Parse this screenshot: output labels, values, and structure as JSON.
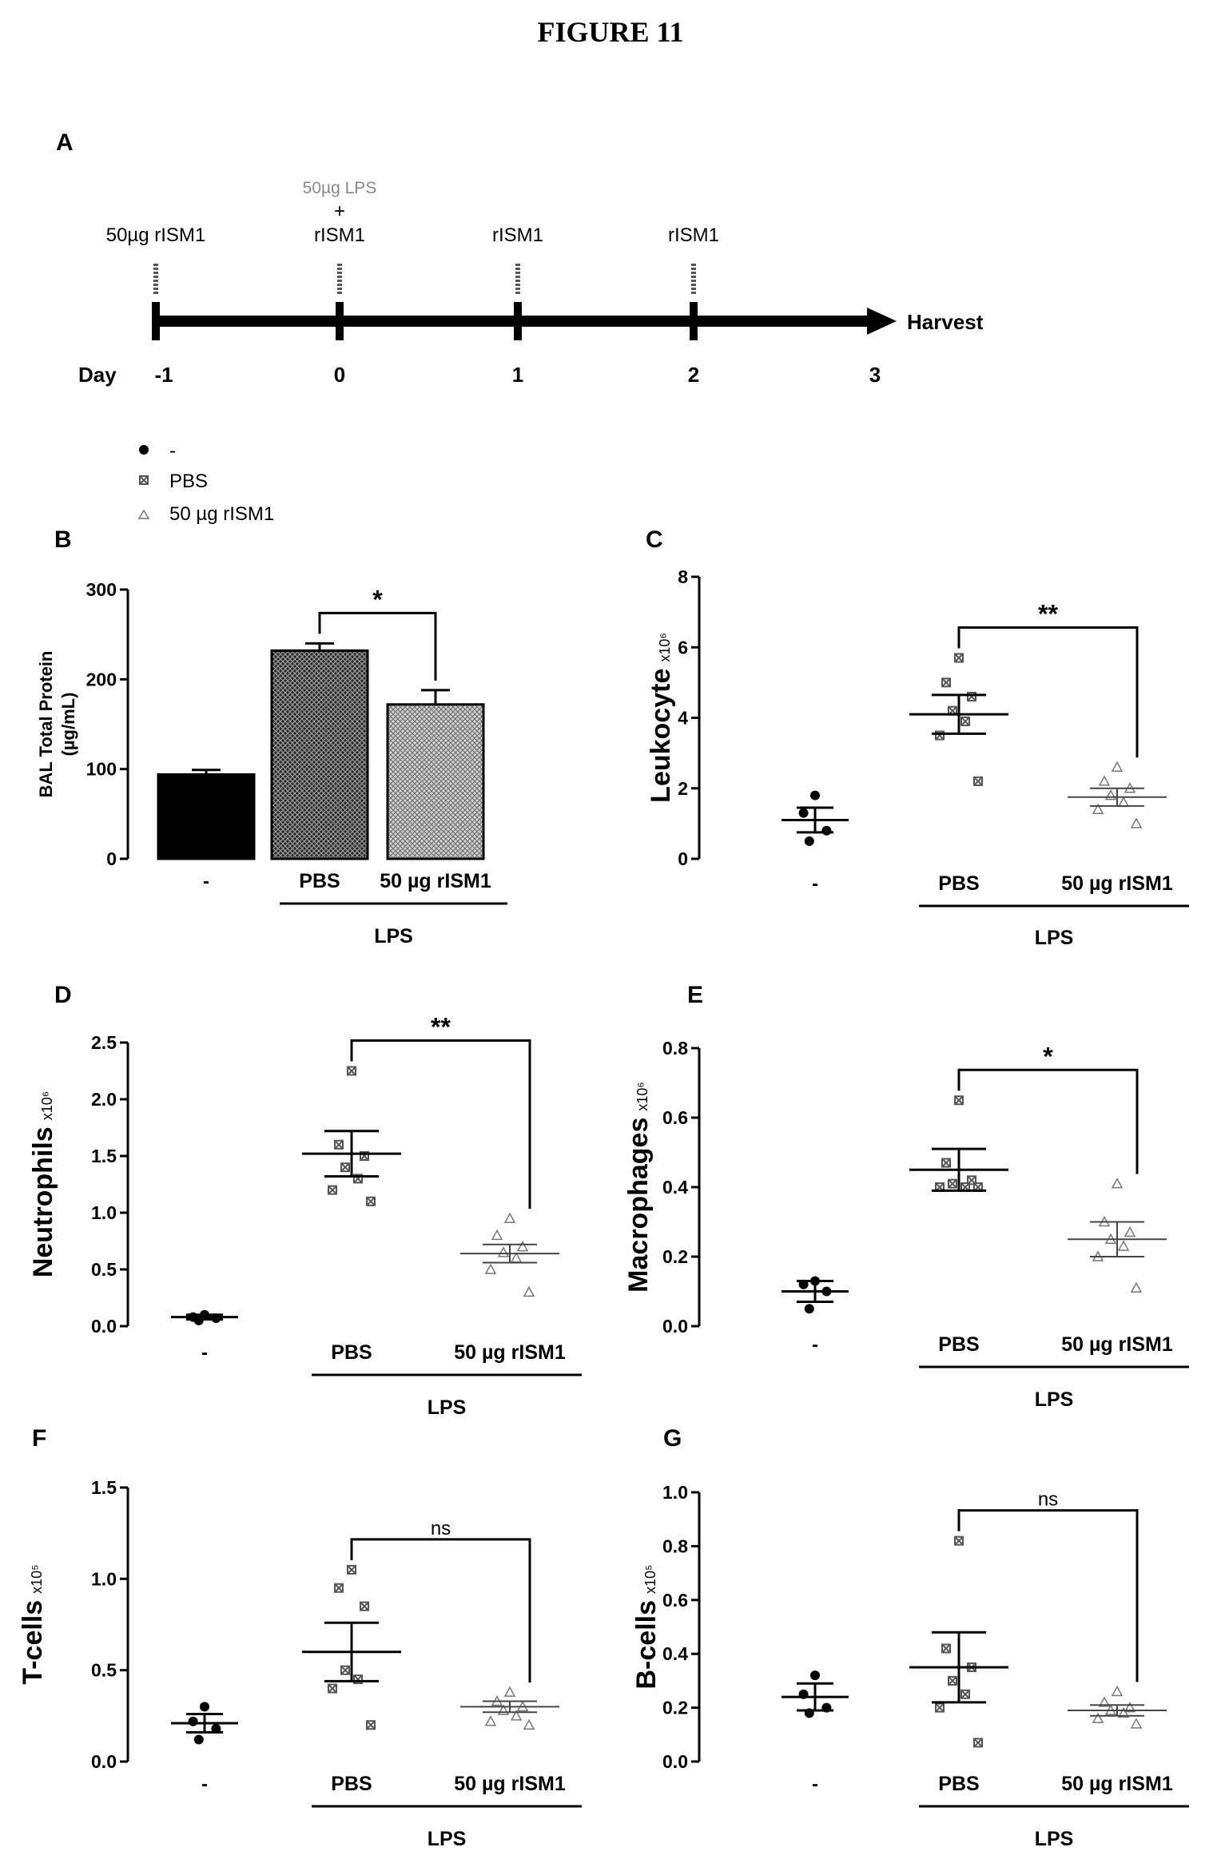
{
  "figure_title": "FIGURE 11",
  "timeline": {
    "panel_label": "A",
    "day_label": "Day",
    "days": [
      "-1",
      "0",
      "1",
      "2",
      "3"
    ],
    "events": [
      {
        "day": "-1",
        "lines": [
          "50µg rISM1"
        ]
      },
      {
        "day": "0",
        "lines": [
          "50µg LPS",
          "+",
          "rISM1"
        ]
      },
      {
        "day": "1",
        "lines": [
          "rISM1"
        ]
      },
      {
        "day": "2",
        "lines": [
          "rISM1"
        ]
      }
    ],
    "end_label": "Harvest"
  },
  "legend": {
    "entries": [
      {
        "marker": "filled-circle",
        "label": "-"
      },
      {
        "marker": "crossed-square",
        "label": "PBS"
      },
      {
        "marker": "open-triangle",
        "label": "50 µg rISM1"
      }
    ]
  },
  "chart_data": [
    {
      "panel": "B",
      "type": "bar",
      "ylabel": "BAL Total Protein",
      "ylabel_unit": "(µg/mL)",
      "categories": [
        "-",
        "PBS",
        "50 µg rISM1"
      ],
      "group_label": "LPS",
      "ylim": [
        0,
        300
      ],
      "yticks": [
        "0",
        "100",
        "200",
        "300"
      ],
      "values": [
        94,
        232,
        172
      ],
      "errors": [
        5,
        8,
        16
      ],
      "significance": "*"
    },
    {
      "panel": "C",
      "type": "scatter",
      "ylabel": "Leukocyte",
      "ylabel_unit": "x10⁶",
      "categories": [
        "-",
        "PBS",
        "50 µg rISM1"
      ],
      "group_label": "LPS",
      "ylim": [
        0,
        8
      ],
      "yticks": [
        "0",
        "2",
        "4",
        "6",
        "8"
      ],
      "points": [
        [
          1.8,
          1.3,
          0.8,
          0.5
        ],
        [
          5.7,
          5.0,
          4.6,
          4.2,
          3.9,
          3.5,
          2.2
        ],
        [
          2.6,
          2.2,
          2.0,
          1.8,
          1.6,
          1.4,
          1.0
        ]
      ],
      "means": [
        1.1,
        4.1,
        1.75
      ],
      "errors": [
        0.35,
        0.55,
        0.25
      ],
      "significance": "**"
    },
    {
      "panel": "D",
      "type": "scatter",
      "ylabel": "Neutrophils",
      "ylabel_unit": "x10⁶",
      "categories": [
        "-",
        "PBS",
        "50 µg rISM1"
      ],
      "group_label": "LPS",
      "ylim": [
        0,
        2.5
      ],
      "yticks": [
        "0.0",
        "0.5",
        "1.0",
        "1.5",
        "2.0",
        "2.5"
      ],
      "points": [
        [
          0.1,
          0.08,
          0.07,
          0.05
        ],
        [
          2.25,
          1.6,
          1.5,
          1.4,
          1.3,
          1.2,
          1.1
        ],
        [
          0.95,
          0.8,
          0.7,
          0.65,
          0.6,
          0.5,
          0.3
        ]
      ],
      "means": [
        0.08,
        1.52,
        0.64
      ],
      "errors": [
        0.02,
        0.2,
        0.08
      ],
      "significance": "**"
    },
    {
      "panel": "E",
      "type": "scatter",
      "ylabel": "Macrophages",
      "ylabel_unit": "x10⁶",
      "categories": [
        "-",
        "PBS",
        "50 µg rISM1"
      ],
      "group_label": "LPS",
      "ylim": [
        0,
        0.8
      ],
      "yticks": [
        "0.0",
        "0.2",
        "0.4",
        "0.6",
        "0.8"
      ],
      "points": [
        [
          0.13,
          0.12,
          0.1,
          0.05
        ],
        [
          0.65,
          0.47,
          0.42,
          0.41,
          0.4,
          0.4,
          0.4
        ],
        [
          0.41,
          0.3,
          0.27,
          0.25,
          0.23,
          0.2,
          0.11
        ]
      ],
      "means": [
        0.1,
        0.45,
        0.25
      ],
      "errors": [
        0.03,
        0.06,
        0.05
      ],
      "significance": "*"
    },
    {
      "panel": "F",
      "type": "scatter",
      "ylabel": "T-cells",
      "ylabel_unit": "x10⁵",
      "categories": [
        "-",
        "PBS",
        "50 µg rISM1"
      ],
      "group_label": "LPS",
      "ylim": [
        0,
        1.5
      ],
      "yticks": [
        "0.0",
        "0.5",
        "1.0",
        "1.5"
      ],
      "points": [
        [
          0.3,
          0.22,
          0.18,
          0.12
        ],
        [
          1.05,
          0.95,
          0.85,
          0.5,
          0.45,
          0.4,
          0.2
        ],
        [
          0.38,
          0.33,
          0.3,
          0.28,
          0.25,
          0.22,
          0.2
        ]
      ],
      "means": [
        0.21,
        0.6,
        0.3
      ],
      "errors": [
        0.05,
        0.16,
        0.03
      ],
      "significance": "ns"
    },
    {
      "panel": "G",
      "type": "scatter",
      "ylabel": "B-cells",
      "ylabel_unit": "x10⁵",
      "categories": [
        "-",
        "PBS",
        "50 µg rISM1"
      ],
      "group_label": "LPS",
      "ylim": [
        0,
        1.0
      ],
      "yticks": [
        "0.0",
        "0.2",
        "0.4",
        "0.6",
        "0.8",
        "1.0"
      ],
      "points": [
        [
          0.32,
          0.25,
          0.2,
          0.18
        ],
        [
          0.82,
          0.42,
          0.35,
          0.3,
          0.25,
          0.2,
          0.07
        ],
        [
          0.26,
          0.22,
          0.2,
          0.19,
          0.18,
          0.16,
          0.14
        ]
      ],
      "means": [
        0.24,
        0.35,
        0.19
      ],
      "errors": [
        0.05,
        0.13,
        0.02
      ],
      "significance": "ns"
    }
  ]
}
